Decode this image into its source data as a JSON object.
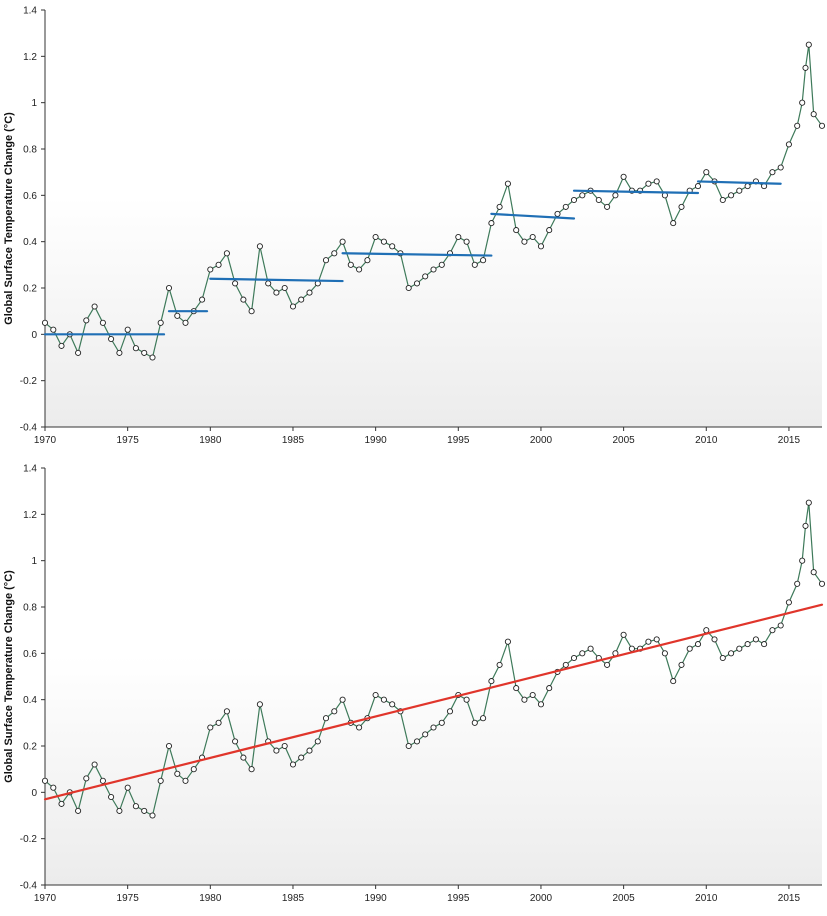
{
  "chart_data": [
    {
      "type": "line",
      "title": "",
      "ylabel": "Global Surface Temperature Change (°C)",
      "xlabel": "",
      "xlim": [
        1970,
        2017
      ],
      "ylim": [
        -0.4,
        1.4
      ],
      "xticks": [
        1970,
        1975,
        1980,
        1985,
        1990,
        1995,
        2000,
        2005,
        2010,
        2015
      ],
      "yticks": [
        "-0.4",
        "-0.2",
        "0",
        "0.2",
        "0.4",
        "0.6",
        "0.8",
        "1",
        "1.2",
        "1.4"
      ],
      "grid": false,
      "colors": {
        "series": "#3e7a5a",
        "marker_fill": "#ffffff",
        "marker_edge": "#222222",
        "overlay": "#1f6fb5",
        "background_top": "#ffffff",
        "background_bottom": "#ececec"
      },
      "series": [
        {
          "style": "line-with-circle-markers",
          "x": [
            1970.0,
            1970.5,
            1971.0,
            1971.5,
            1972.0,
            1972.5,
            1973.0,
            1973.5,
            1974.0,
            1974.5,
            1975.0,
            1975.5,
            1976.0,
            1976.5,
            1977.0,
            1977.5,
            1978.0,
            1978.5,
            1979.0,
            1979.5,
            1980.0,
            1980.5,
            1981.0,
            1981.5,
            1982.0,
            1982.5,
            1983.0,
            1983.5,
            1984.0,
            1984.5,
            1985.0,
            1985.5,
            1986.0,
            1986.5,
            1987.0,
            1987.5,
            1988.0,
            1988.5,
            1989.0,
            1989.5,
            1990.0,
            1990.5,
            1991.0,
            1991.5,
            1992.0,
            1992.5,
            1993.0,
            1993.5,
            1994.0,
            1994.5,
            1995.0,
            1995.5,
            1996.0,
            1996.5,
            1997.0,
            1997.5,
            1998.0,
            1998.5,
            1999.0,
            1999.5,
            2000.0,
            2000.5,
            2001.0,
            2001.5,
            2002.0,
            2002.5,
            2003.0,
            2003.5,
            2004.0,
            2004.5,
            2005.0,
            2005.5,
            2006.0,
            2006.5,
            2007.0,
            2007.5,
            2008.0,
            2008.5,
            2009.0,
            2009.5,
            2010.0,
            2010.5,
            2011.0,
            2011.5,
            2012.0,
            2012.5,
            2013.0,
            2013.5,
            2014.0,
            2014.5,
            2015.0,
            2015.5,
            2015.8,
            2016.0,
            2016.2,
            2016.5,
            2017.0
          ],
          "y": [
            0.05,
            0.02,
            -0.05,
            0.0,
            -0.08,
            0.06,
            0.12,
            0.05,
            -0.02,
            -0.08,
            0.02,
            -0.06,
            -0.08,
            -0.1,
            0.05,
            0.2,
            0.08,
            0.05,
            0.1,
            0.15,
            0.28,
            0.3,
            0.35,
            0.22,
            0.15,
            0.1,
            0.38,
            0.22,
            0.18,
            0.2,
            0.12,
            0.15,
            0.18,
            0.22,
            0.32,
            0.35,
            0.4,
            0.3,
            0.28,
            0.32,
            0.42,
            0.4,
            0.38,
            0.35,
            0.2,
            0.22,
            0.25,
            0.28,
            0.3,
            0.35,
            0.42,
            0.4,
            0.3,
            0.32,
            0.48,
            0.55,
            0.65,
            0.45,
            0.4,
            0.42,
            0.38,
            0.45,
            0.52,
            0.55,
            0.58,
            0.6,
            0.62,
            0.58,
            0.55,
            0.6,
            0.68,
            0.62,
            0.62,
            0.65,
            0.66,
            0.6,
            0.48,
            0.55,
            0.62,
            0.64,
            0.7,
            0.66,
            0.58,
            0.6,
            0.62,
            0.64,
            0.66,
            0.64,
            0.7,
            0.72,
            0.82,
            0.9,
            1.0,
            1.15,
            1.25,
            0.95,
            0.9
          ]
        }
      ],
      "overlay_segments": [
        {
          "x": [
            1970.0,
            1977.2
          ],
          "y": [
            0.0,
            0.0
          ]
        },
        {
          "x": [
            1977.5,
            1979.8
          ],
          "y": [
            0.1,
            0.1
          ]
        },
        {
          "x": [
            1980.0,
            1988.0
          ],
          "y": [
            0.24,
            0.23
          ]
        },
        {
          "x": [
            1988.0,
            1997.0
          ],
          "y": [
            0.35,
            0.34
          ]
        },
        {
          "x": [
            1997.0,
            2002.0
          ],
          "y": [
            0.52,
            0.5
          ]
        },
        {
          "x": [
            2002.0,
            2009.5
          ],
          "y": [
            0.62,
            0.61
          ]
        },
        {
          "x": [
            2009.5,
            2014.5
          ],
          "y": [
            0.66,
            0.65
          ]
        }
      ]
    },
    {
      "type": "line",
      "title": "",
      "ylabel": "Global Surface Temperature Change (°C)",
      "xlabel": "",
      "xlim": [
        1970,
        2017
      ],
      "ylim": [
        -0.4,
        1.4
      ],
      "xticks": [
        1970,
        1975,
        1980,
        1985,
        1990,
        1995,
        2000,
        2005,
        2010,
        2015
      ],
      "yticks": [
        "-0.4",
        "-0.2",
        "0",
        "0.2",
        "0.4",
        "0.6",
        "0.8",
        "1",
        "1.2",
        "1.4"
      ],
      "grid": false,
      "colors": {
        "series": "#3e7a5a",
        "marker_fill": "#ffffff",
        "marker_edge": "#222222",
        "overlay": "#e0352b",
        "background_top": "#ffffff",
        "background_bottom": "#ececec"
      },
      "series": [
        {
          "style": "line-with-circle-markers",
          "x": [
            1970.0,
            1970.5,
            1971.0,
            1971.5,
            1972.0,
            1972.5,
            1973.0,
            1973.5,
            1974.0,
            1974.5,
            1975.0,
            1975.5,
            1976.0,
            1976.5,
            1977.0,
            1977.5,
            1978.0,
            1978.5,
            1979.0,
            1979.5,
            1980.0,
            1980.5,
            1981.0,
            1981.5,
            1982.0,
            1982.5,
            1983.0,
            1983.5,
            1984.0,
            1984.5,
            1985.0,
            1985.5,
            1986.0,
            1986.5,
            1987.0,
            1987.5,
            1988.0,
            1988.5,
            1989.0,
            1989.5,
            1990.0,
            1990.5,
            1991.0,
            1991.5,
            1992.0,
            1992.5,
            1993.0,
            1993.5,
            1994.0,
            1994.5,
            1995.0,
            1995.5,
            1996.0,
            1996.5,
            1997.0,
            1997.5,
            1998.0,
            1998.5,
            1999.0,
            1999.5,
            2000.0,
            2000.5,
            2001.0,
            2001.5,
            2002.0,
            2002.5,
            2003.0,
            2003.5,
            2004.0,
            2004.5,
            2005.0,
            2005.5,
            2006.0,
            2006.5,
            2007.0,
            2007.5,
            2008.0,
            2008.5,
            2009.0,
            2009.5,
            2010.0,
            2010.5,
            2011.0,
            2011.5,
            2012.0,
            2012.5,
            2013.0,
            2013.5,
            2014.0,
            2014.5,
            2015.0,
            2015.5,
            2015.8,
            2016.0,
            2016.2,
            2016.5,
            2017.0
          ],
          "y": [
            0.05,
            0.02,
            -0.05,
            0.0,
            -0.08,
            0.06,
            0.12,
            0.05,
            -0.02,
            -0.08,
            0.02,
            -0.06,
            -0.08,
            -0.1,
            0.05,
            0.2,
            0.08,
            0.05,
            0.1,
            0.15,
            0.28,
            0.3,
            0.35,
            0.22,
            0.15,
            0.1,
            0.38,
            0.22,
            0.18,
            0.2,
            0.12,
            0.15,
            0.18,
            0.22,
            0.32,
            0.35,
            0.4,
            0.3,
            0.28,
            0.32,
            0.42,
            0.4,
            0.38,
            0.35,
            0.2,
            0.22,
            0.25,
            0.28,
            0.3,
            0.35,
            0.42,
            0.4,
            0.3,
            0.32,
            0.48,
            0.55,
            0.65,
            0.45,
            0.4,
            0.42,
            0.38,
            0.45,
            0.52,
            0.55,
            0.58,
            0.6,
            0.62,
            0.58,
            0.55,
            0.6,
            0.68,
            0.62,
            0.62,
            0.65,
            0.66,
            0.6,
            0.48,
            0.55,
            0.62,
            0.64,
            0.7,
            0.66,
            0.58,
            0.6,
            0.62,
            0.64,
            0.66,
            0.64,
            0.7,
            0.72,
            0.82,
            0.9,
            1.0,
            1.15,
            1.25,
            0.95,
            0.9
          ]
        }
      ],
      "overlay_segments": [
        {
          "x": [
            1970.0,
            2017.0
          ],
          "y": [
            -0.03,
            0.81
          ]
        }
      ]
    }
  ]
}
